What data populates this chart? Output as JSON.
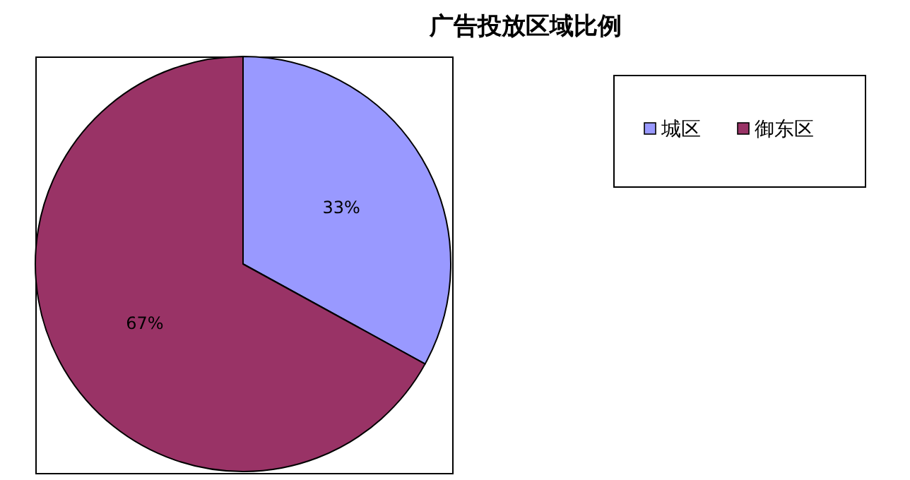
{
  "chart_data": {
    "type": "pie",
    "title": "广告投放区域比例",
    "categories": [
      "城区",
      "御东区"
    ],
    "values": [
      33,
      67
    ],
    "colors": [
      "#9999ff",
      "#993366"
    ],
    "value_labels": [
      "33%",
      "67%"
    ],
    "legend": "top right"
  }
}
